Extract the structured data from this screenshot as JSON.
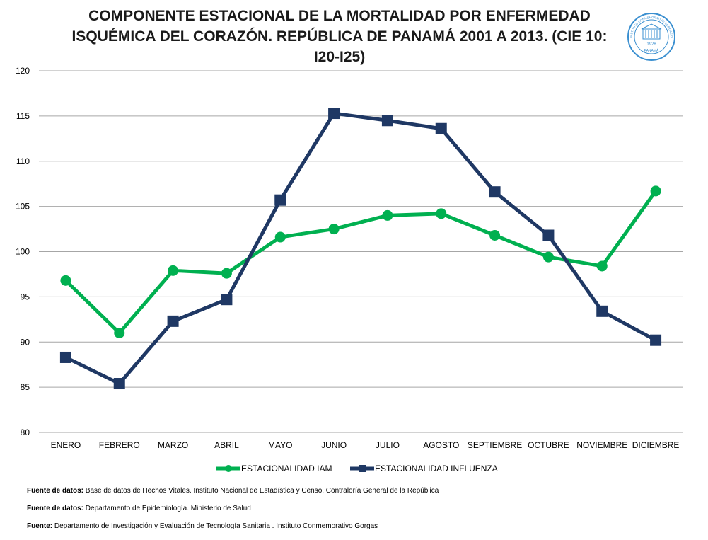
{
  "chart_data": {
    "type": "line",
    "title_lines": [
      "COMPONENTE ESTACIONAL DE LA MORTALIDAD POR ENFERMEDAD",
      "ISQUÉMICA DEL CORAZÓN. REPÚBLICA DE PANAMÁ 2001 A 2013. (CIE 10:",
      "I20-I25)"
    ],
    "xlabel": "",
    "ylabel": "",
    "ylim": [
      80,
      120
    ],
    "yticks": [
      80,
      85,
      90,
      95,
      100,
      105,
      110,
      115,
      120
    ],
    "grid": true,
    "legend_position": "bottom",
    "categories": [
      "ENERO",
      "FEBRERO",
      "MARZO",
      "ABRIL",
      "MAYO",
      "JUNIO",
      "JULIO",
      "AGOSTO",
      "SEPTIEMBRE",
      "OCTUBRE",
      "NOVIEMBRE",
      "DICIEMBRE"
    ],
    "series": [
      {
        "name": "ESTACIONALIDAD IAM",
        "marker": "circle",
        "color": "#00b050",
        "values": [
          96.8,
          91.0,
          97.9,
          97.6,
          101.6,
          102.5,
          104.0,
          104.2,
          101.8,
          99.4,
          98.4,
          106.7
        ]
      },
      {
        "name": "ESTACIONALIDAD INFLUENZA",
        "marker": "square",
        "color": "#1f3864",
        "values": [
          88.3,
          85.4,
          92.3,
          94.7,
          105.7,
          115.3,
          114.5,
          113.6,
          106.6,
          101.8,
          93.4,
          90.2
        ]
      }
    ]
  },
  "footnotes": [
    {
      "label": "Fuente de datos:",
      "text": "Base de datos de Hechos Vitales. Instituto Nacional de Estadística y Censo. Contraloría General de la República"
    },
    {
      "label": "Fuente de datos:",
      "text": "Departamento de Epidemiología. Ministerio de Salud"
    },
    {
      "label": "Fuente:",
      "text": "Departamento de Investigación y Evaluación de Tecnología Sanitaria . Instituto Conmemorativo Gorgas"
    }
  ],
  "logo": {
    "icon": "institution-seal-icon",
    "text_top": "INSTITUTO CONMEMORATIVO GORGAS DE ESTUDIOS DE LA SALUD",
    "text_year": "1928",
    "text_bottom": "PANAMÁ",
    "color": "#3a8fd0"
  }
}
